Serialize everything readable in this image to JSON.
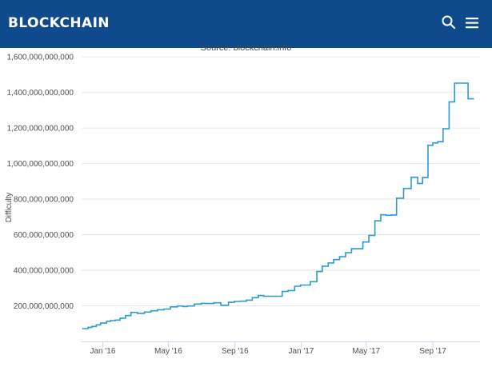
{
  "header": {
    "brand": "BLOCKCHAIN",
    "search_icon": "search-icon",
    "menu_icon": "hamburger-menu-icon",
    "background_color": "#0f4b8c"
  },
  "source_note": "Source: blockchain.info",
  "chart_data": {
    "type": "line",
    "ylabel": "Difficulty",
    "xlabel": "",
    "line_color": "#2a9bd1",
    "y_ticks": [
      200000000000,
      400000000000,
      600000000000,
      800000000000,
      1000000000000,
      1200000000000,
      1400000000000,
      1600000000000
    ],
    "y_tick_labels": [
      "200,000,000,000",
      "400,000,000,000",
      "600,000,000,000",
      "800,000,000,000",
      "1,000,000,000,000",
      "1,200,000,000,000",
      "1,400,000,000,000",
      "1,600,000,000,000"
    ],
    "x_ticks": [
      "2016-01-01",
      "2016-05-01",
      "2016-09-01",
      "2017-01-01",
      "2017-05-01",
      "2017-09-01"
    ],
    "x_tick_labels": [
      "Jan '16",
      "May '16",
      "Sep '16",
      "Jan '17",
      "May '17",
      "Sep '17"
    ],
    "xlim": [
      "2015-11-23",
      "2017-11-27"
    ],
    "ylim": [
      0,
      1650000000000
    ],
    "grid": true,
    "series": [
      {
        "x": [
          "2015-11-25",
          "2015-12-05",
          "2015-12-12",
          "2015-12-20",
          "2015-12-28",
          "2016-01-08",
          "2016-01-15",
          "2016-01-24",
          "2016-02-02",
          "2016-02-12",
          "2016-02-22",
          "2016-03-05",
          "2016-03-18",
          "2016-03-30",
          "2016-04-11",
          "2016-04-23",
          "2016-05-05",
          "2016-05-18",
          "2016-05-28",
          "2016-06-05",
          "2016-06-18",
          "2016-07-01",
          "2016-07-10",
          "2016-07-24",
          "2016-08-06",
          "2016-08-20",
          "2016-08-31",
          "2016-09-10",
          "2016-09-22",
          "2016-10-03",
          "2016-10-14",
          "2016-10-24",
          "2016-11-05",
          "2016-11-16",
          "2016-11-27",
          "2016-12-08",
          "2016-12-20",
          "2016-12-31",
          "2017-01-08",
          "2017-01-18",
          "2017-01-30",
          "2017-02-09",
          "2017-02-20",
          "2017-03-02",
          "2017-03-13",
          "2017-03-24",
          "2017-04-04",
          "2017-04-14",
          "2017-04-25",
          "2017-05-06",
          "2017-05-17",
          "2017-05-28",
          "2017-06-06",
          "2017-06-16",
          "2017-06-26",
          "2017-07-09",
          "2017-07-23",
          "2017-08-04",
          "2017-08-13",
          "2017-08-23",
          "2017-09-01",
          "2017-09-10",
          "2017-09-20",
          "2017-10-01",
          "2017-10-11",
          "2017-10-14",
          "2017-10-26",
          "2017-11-05",
          "2017-11-15"
        ],
        "values": [
          72000000000,
          79000000000,
          84000000000,
          93000000000,
          103000000000,
          113000000000,
          117000000000,
          120000000000,
          130000000000,
          145000000000,
          163000000000,
          158000000000,
          165000000000,
          172000000000,
          178000000000,
          182000000000,
          194000000000,
          199000000000,
          196000000000,
          199000000000,
          210000000000,
          214000000000,
          213000000000,
          217000000000,
          203000000000,
          220000000000,
          225000000000,
          226000000000,
          232000000000,
          246000000000,
          258000000000,
          254000000000,
          254000000000,
          254000000000,
          281000000000,
          286000000000,
          310000000000,
          317000000000,
          317000000000,
          336000000000,
          393000000000,
          423000000000,
          441000000000,
          460000000000,
          476000000000,
          499000000000,
          521000000000,
          521000000000,
          559000000000,
          596000000000,
          678000000000,
          712000000000,
          709000000000,
          711000000000,
          805000000000,
          860000000000,
          923000000000,
          888000000000,
          922000000000,
          1103000000000,
          1116000000000,
          1123000000000,
          1196000000000,
          1347000000000,
          1452000000000,
          1452000000000,
          1452000000000,
          1364000000000,
          1364000000000
        ]
      }
    ]
  }
}
